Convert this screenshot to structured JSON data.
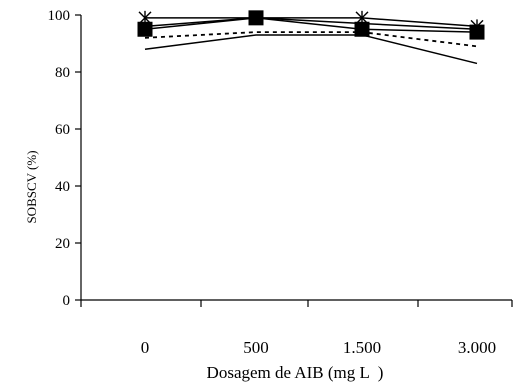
{
  "chart_data": {
    "type": "line",
    "title": "",
    "xlabel": "Dosagem de AIB (mg L  )",
    "ylabel": "SOBSCV (%)",
    "categories": [
      "0",
      "500",
      "1.500",
      "3.000"
    ],
    "ylim": [
      0,
      100
    ],
    "yticks": [
      "0",
      "20",
      "40",
      "60",
      "80",
      "100"
    ],
    "grid": false,
    "legend": "none",
    "series": [
      {
        "marker": "asterisk",
        "style": "solid",
        "color": "#000000",
        "values": [
          99,
          99,
          99,
          96
        ]
      },
      {
        "marker": "none",
        "style": "solid",
        "color": "#000000",
        "values": [
          96,
          99,
          97,
          95
        ]
      },
      {
        "marker": "none",
        "style": "dashed",
        "color": "#000000",
        "values": [
          92,
          94,
          94,
          89
        ]
      },
      {
        "marker": "none",
        "style": "solid",
        "color": "#000000",
        "values": [
          88,
          93,
          93,
          83
        ]
      },
      {
        "marker": "square",
        "style": "solid",
        "color": "#000000",
        "values": [
          95,
          99,
          95,
          94
        ]
      }
    ]
  }
}
